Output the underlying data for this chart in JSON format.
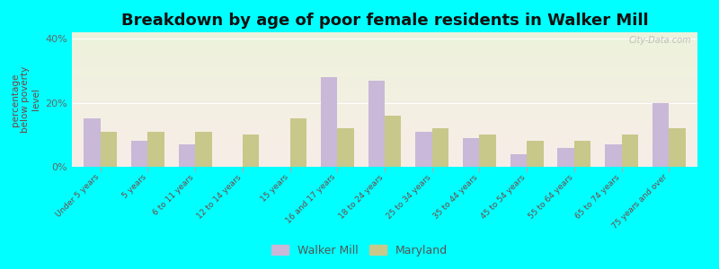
{
  "title": "Breakdown by age of poor female residents in Walker Mill",
  "ylabel": "percentage\nbelow poverty\nlevel",
  "categories": [
    "Under 5 years",
    "5 years",
    "6 to 11 years",
    "12 to 14 years",
    "15 years",
    "16 and 17 years",
    "18 to 24 years",
    "25 to 34 years",
    "35 to 44 years",
    "45 to 54 years",
    "55 to 64 years",
    "65 to 74 years",
    "75 years and over"
  ],
  "walker_mill": [
    15,
    8,
    7,
    0,
    0,
    28,
    27,
    11,
    9,
    4,
    6,
    7,
    20
  ],
  "maryland": [
    11,
    11,
    11,
    10,
    15,
    12,
    16,
    12,
    10,
    8,
    8,
    10,
    12
  ],
  "walker_color": "#c9b8d8",
  "maryland_color": "#c8c88a",
  "background_top": "#edf3dc",
  "background_bottom": "#f8ede8",
  "outer_bg": "#00ffff",
  "ylim": [
    0,
    42
  ],
  "yticks": [
    0,
    20,
    40
  ],
  "ytick_labels": [
    "0%",
    "20%",
    "40%"
  ],
  "title_fontsize": 13,
  "legend_labels": [
    "Walker Mill",
    "Maryland"
  ],
  "bar_width": 0.35,
  "watermark": "City-Data.com"
}
